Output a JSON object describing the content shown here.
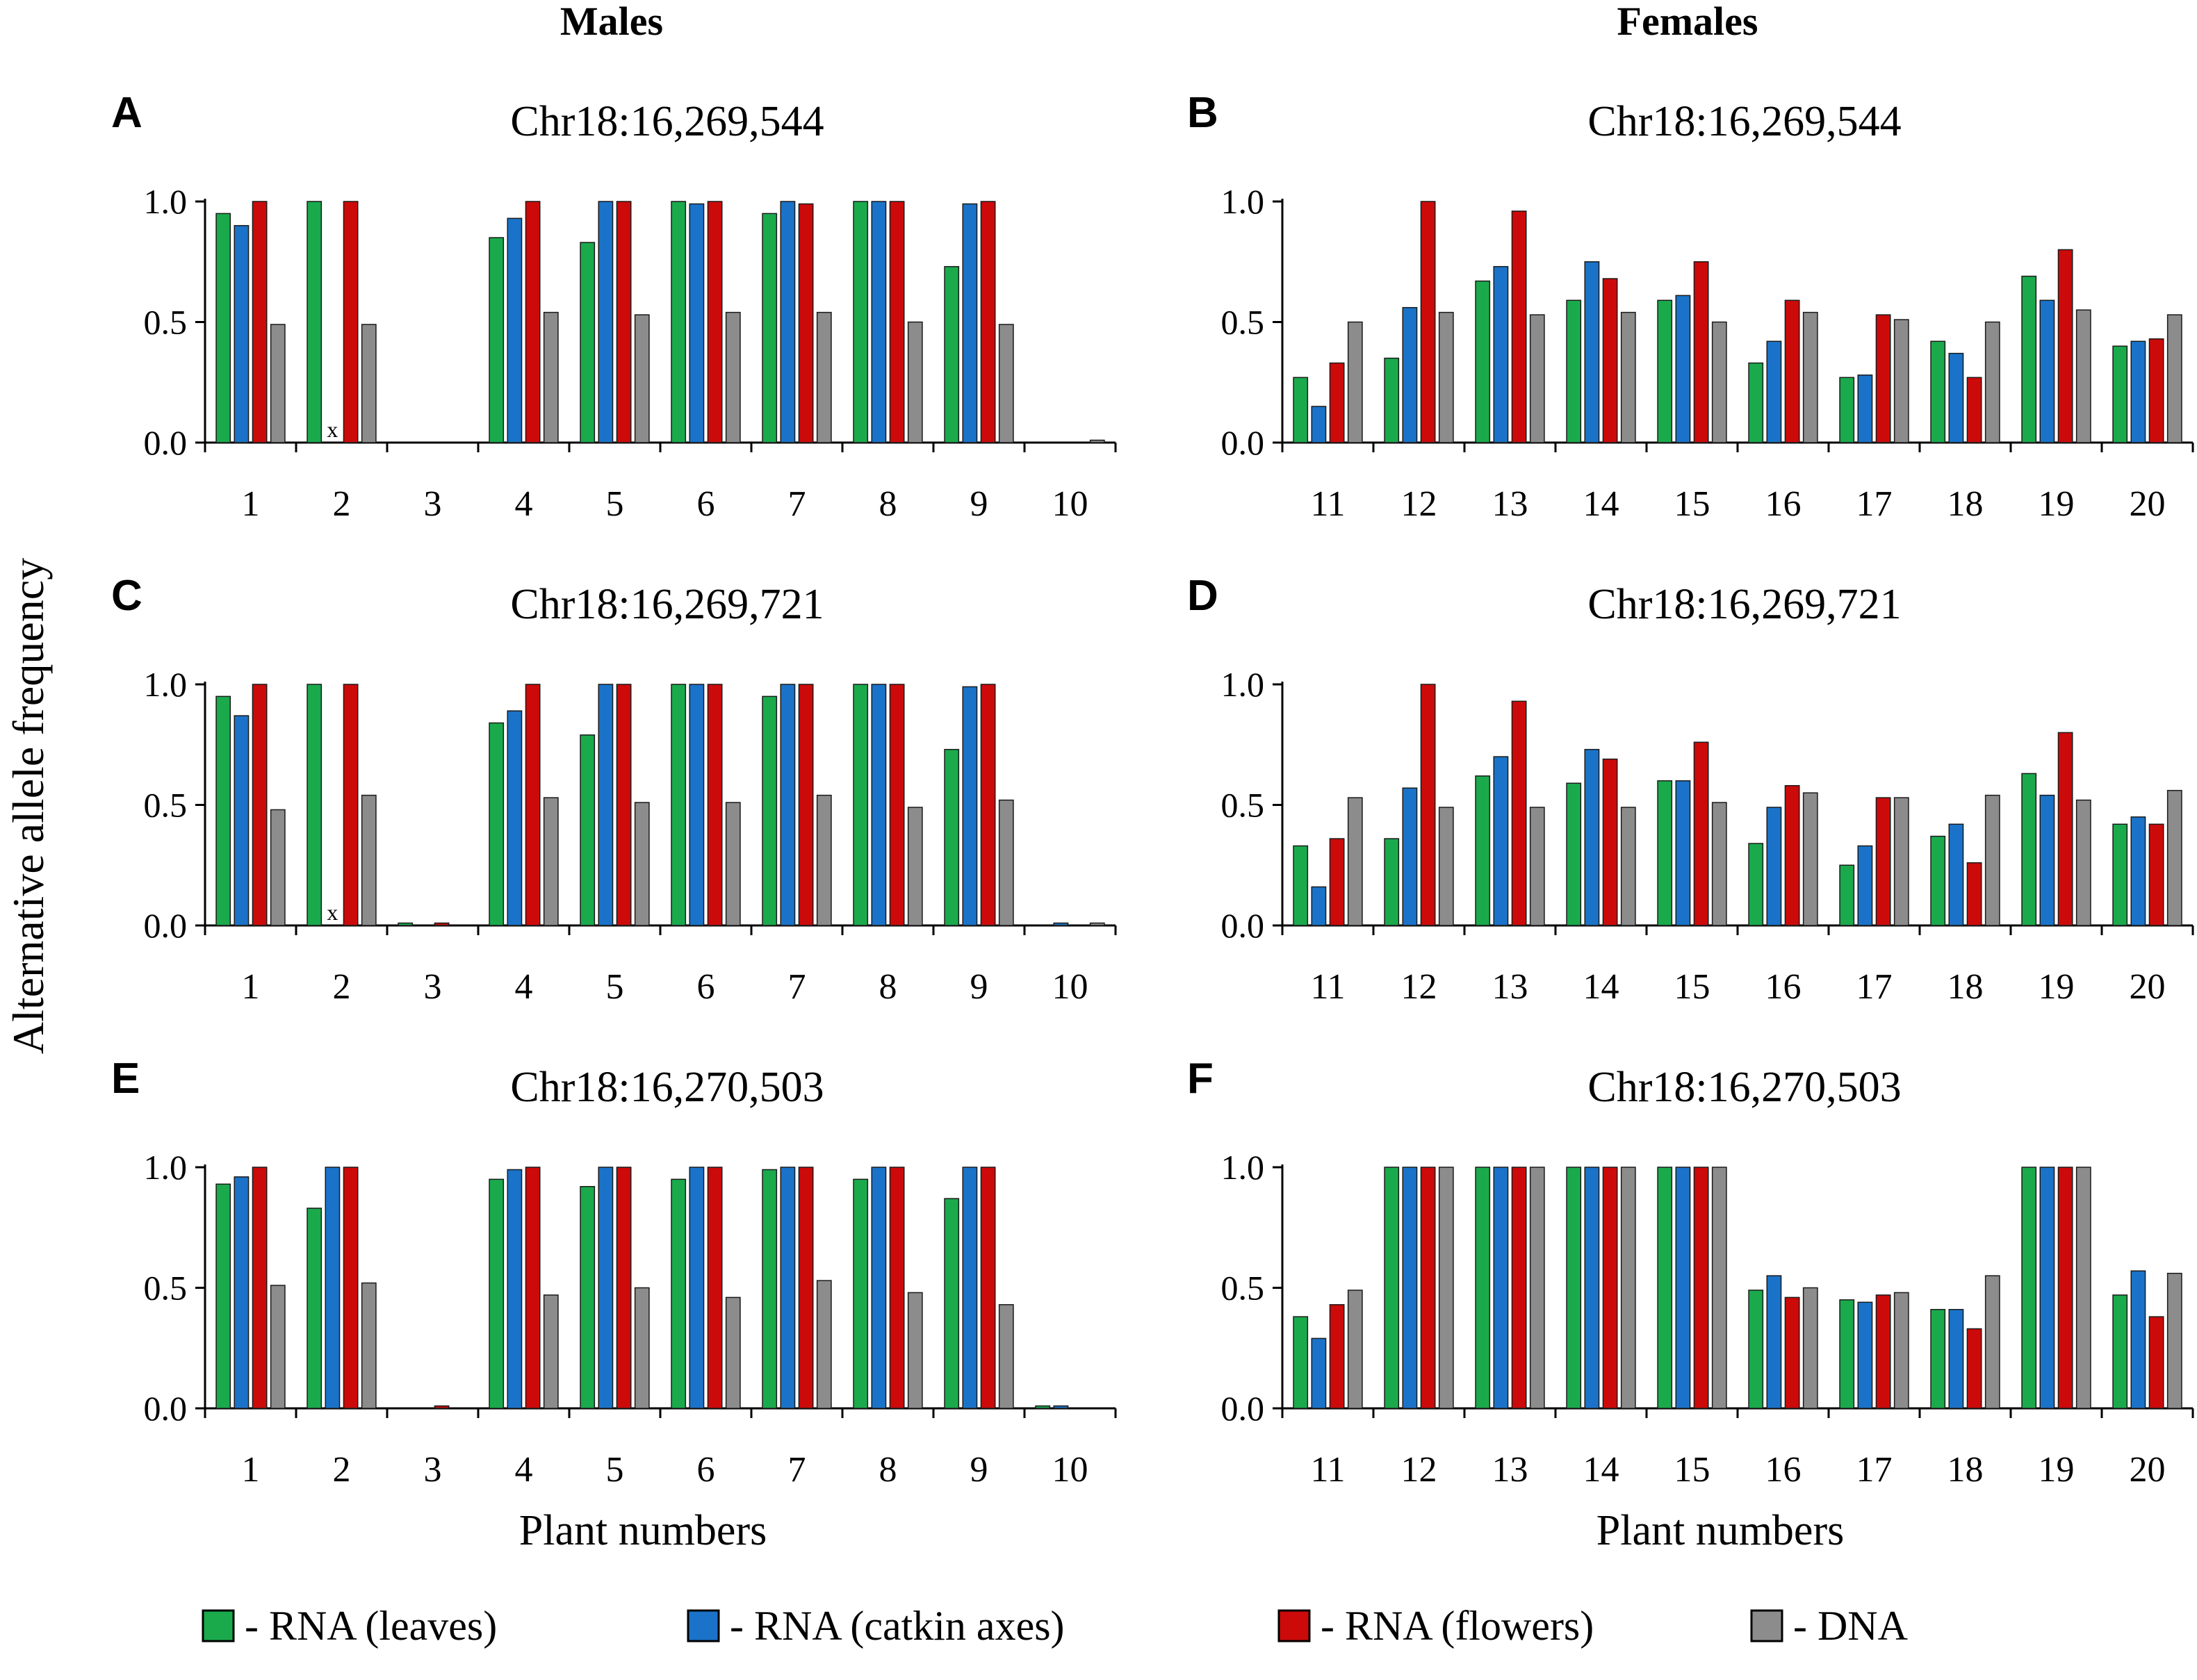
{
  "figure": {
    "column_titles": [
      "Males",
      "Females"
    ],
    "ylabel": "Alternative allele frequency",
    "xlabel": "Plant numbers",
    "legend": [
      {
        "key": "leaves",
        "label": "- RNA (leaves)",
        "color": "#1aaa4c"
      },
      {
        "key": "catkin",
        "label": "- RNA (catkin axes)",
        "color": "#1a73c8"
      },
      {
        "key": "flowers",
        "label": "- RNA (flowers)",
        "color": "#cc0a0a"
      },
      {
        "key": "dna",
        "label": "- DNA",
        "color": "#8c8c8c"
      }
    ],
    "series_colors": {
      "leaves": "#1aaa4c",
      "catkin": "#1a73c8",
      "flowers": "#cc0a0a",
      "dna": "#8c8c8c"
    }
  },
  "chart_data": [
    {
      "panel": "A",
      "title": "Chr18:16,269,544",
      "type": "bar",
      "categories": [
        "1",
        "2",
        "3",
        "4",
        "5",
        "6",
        "7",
        "8",
        "9",
        "10"
      ],
      "yticks": [
        "0.0",
        "0.5",
        "1.0"
      ],
      "ylim": [
        0,
        1
      ],
      "series": [
        {
          "name": "RNA (leaves)",
          "values": [
            0.95,
            1.0,
            0,
            0.85,
            0.83,
            1.0,
            0.95,
            1.0,
            0.73,
            0
          ]
        },
        {
          "name": "RNA (catkin axes)",
          "values": [
            0.9,
            null,
            0,
            0.93,
            1.0,
            0.99,
            1.0,
            1.0,
            0.99,
            0
          ]
        },
        {
          "name": "RNA (flowers)",
          "values": [
            1.0,
            1.0,
            0,
            1.0,
            1.0,
            1.0,
            0.99,
            1.0,
            1.0,
            0
          ]
        },
        {
          "name": "DNA",
          "values": [
            0.49,
            0.49,
            0,
            0.54,
            0.53,
            0.54,
            0.54,
            0.5,
            0.49,
            0.01
          ]
        }
      ],
      "missing_marks": [
        {
          "category": "2",
          "series": "RNA (catkin axes)",
          "label": "x"
        }
      ]
    },
    {
      "panel": "B",
      "title": "Chr18:16,269,544",
      "type": "bar",
      "categories": [
        "11",
        "12",
        "13",
        "14",
        "15",
        "16",
        "17",
        "18",
        "19",
        "20"
      ],
      "yticks": [
        "0.0",
        "0.5",
        "1.0"
      ],
      "ylim": [
        0,
        1
      ],
      "series": [
        {
          "name": "RNA (leaves)",
          "values": [
            0.27,
            0.35,
            0.67,
            0.59,
            0.59,
            0.33,
            0.27,
            0.42,
            0.69,
            0.4
          ]
        },
        {
          "name": "RNA (catkin axes)",
          "values": [
            0.15,
            0.56,
            0.73,
            0.75,
            0.61,
            0.42,
            0.28,
            0.37,
            0.59,
            0.42
          ]
        },
        {
          "name": "RNA (flowers)",
          "values": [
            0.33,
            1.0,
            0.96,
            0.68,
            0.75,
            0.59,
            0.53,
            0.27,
            0.8,
            0.43
          ]
        },
        {
          "name": "DNA",
          "values": [
            0.5,
            0.54,
            0.53,
            0.54,
            0.5,
            0.54,
            0.51,
            0.5,
            0.55,
            0.53
          ]
        }
      ]
    },
    {
      "panel": "C",
      "title": "Chr18:16,269,721",
      "type": "bar",
      "categories": [
        "1",
        "2",
        "3",
        "4",
        "5",
        "6",
        "7",
        "8",
        "9",
        "10"
      ],
      "yticks": [
        "0.0",
        "0.5",
        "1.0"
      ],
      "ylim": [
        0,
        1
      ],
      "series": [
        {
          "name": "RNA (leaves)",
          "values": [
            0.95,
            1.0,
            0.01,
            0.84,
            0.79,
            1.0,
            0.95,
            1.0,
            0.73,
            0
          ]
        },
        {
          "name": "RNA (catkin axes)",
          "values": [
            0.87,
            null,
            0,
            0.89,
            1.0,
            1.0,
            1.0,
            1.0,
            0.99,
            0.01
          ]
        },
        {
          "name": "RNA (flowers)",
          "values": [
            1.0,
            1.0,
            0.01,
            1.0,
            1.0,
            1.0,
            1.0,
            1.0,
            1.0,
            0
          ]
        },
        {
          "name": "DNA",
          "values": [
            0.48,
            0.54,
            0,
            0.53,
            0.51,
            0.51,
            0.54,
            0.49,
            0.52,
            0.01
          ]
        }
      ],
      "missing_marks": [
        {
          "category": "2",
          "series": "RNA (catkin axes)",
          "label": "x"
        }
      ]
    },
    {
      "panel": "D",
      "title": "Chr18:16,269,721",
      "type": "bar",
      "categories": [
        "11",
        "12",
        "13",
        "14",
        "15",
        "16",
        "17",
        "18",
        "19",
        "20"
      ],
      "yticks": [
        "0.0",
        "0.5",
        "1.0"
      ],
      "ylim": [
        0,
        1
      ],
      "series": [
        {
          "name": "RNA (leaves)",
          "values": [
            0.33,
            0.36,
            0.62,
            0.59,
            0.6,
            0.34,
            0.25,
            0.37,
            0.63,
            0.42
          ]
        },
        {
          "name": "RNA (catkin axes)",
          "values": [
            0.16,
            0.57,
            0.7,
            0.73,
            0.6,
            0.49,
            0.33,
            0.42,
            0.54,
            0.45
          ]
        },
        {
          "name": "RNA (flowers)",
          "values": [
            0.36,
            1.0,
            0.93,
            0.69,
            0.76,
            0.58,
            0.53,
            0.26,
            0.8,
            0.42
          ]
        },
        {
          "name": "DNA",
          "values": [
            0.53,
            0.49,
            0.49,
            0.49,
            0.51,
            0.55,
            0.53,
            0.54,
            0.52,
            0.56
          ]
        }
      ]
    },
    {
      "panel": "E",
      "title": "Chr18:16,270,503",
      "type": "bar",
      "categories": [
        "1",
        "2",
        "3",
        "4",
        "5",
        "6",
        "7",
        "8",
        "9",
        "10"
      ],
      "yticks": [
        "0.0",
        "0.5",
        "1.0"
      ],
      "ylim": [
        0,
        1
      ],
      "series": [
        {
          "name": "RNA (leaves)",
          "values": [
            0.93,
            0.83,
            0,
            0.95,
            0.92,
            0.95,
            0.99,
            0.95,
            0.87,
            0.01
          ]
        },
        {
          "name": "RNA (catkin axes)",
          "values": [
            0.96,
            1.0,
            0,
            0.99,
            1.0,
            1.0,
            1.0,
            1.0,
            1.0,
            0.01
          ]
        },
        {
          "name": "RNA (flowers)",
          "values": [
            1.0,
            1.0,
            0.01,
            1.0,
            1.0,
            1.0,
            1.0,
            1.0,
            1.0,
            0
          ]
        },
        {
          "name": "DNA",
          "values": [
            0.51,
            0.52,
            0,
            0.47,
            0.5,
            0.46,
            0.53,
            0.48,
            0.43,
            0
          ]
        }
      ]
    },
    {
      "panel": "F",
      "title": "Chr18:16,270,503",
      "type": "bar",
      "categories": [
        "11",
        "12",
        "13",
        "14",
        "15",
        "16",
        "17",
        "18",
        "19",
        "20"
      ],
      "yticks": [
        "0.0",
        "0.5",
        "1.0"
      ],
      "ylim": [
        0,
        1
      ],
      "series": [
        {
          "name": "RNA (leaves)",
          "values": [
            0.38,
            1.0,
            1.0,
            1.0,
            1.0,
            0.49,
            0.45,
            0.41,
            1.0,
            0.47
          ]
        },
        {
          "name": "RNA (catkin axes)",
          "values": [
            0.29,
            1.0,
            1.0,
            1.0,
            1.0,
            0.55,
            0.44,
            0.41,
            1.0,
            0.57
          ]
        },
        {
          "name": "RNA (flowers)",
          "values": [
            0.43,
            1.0,
            1.0,
            1.0,
            1.0,
            0.46,
            0.47,
            0.33,
            1.0,
            0.38
          ]
        },
        {
          "name": "DNA",
          "values": [
            0.49,
            1.0,
            1.0,
            1.0,
            1.0,
            0.5,
            0.48,
            0.55,
            1.0,
            0.56
          ]
        }
      ]
    }
  ]
}
